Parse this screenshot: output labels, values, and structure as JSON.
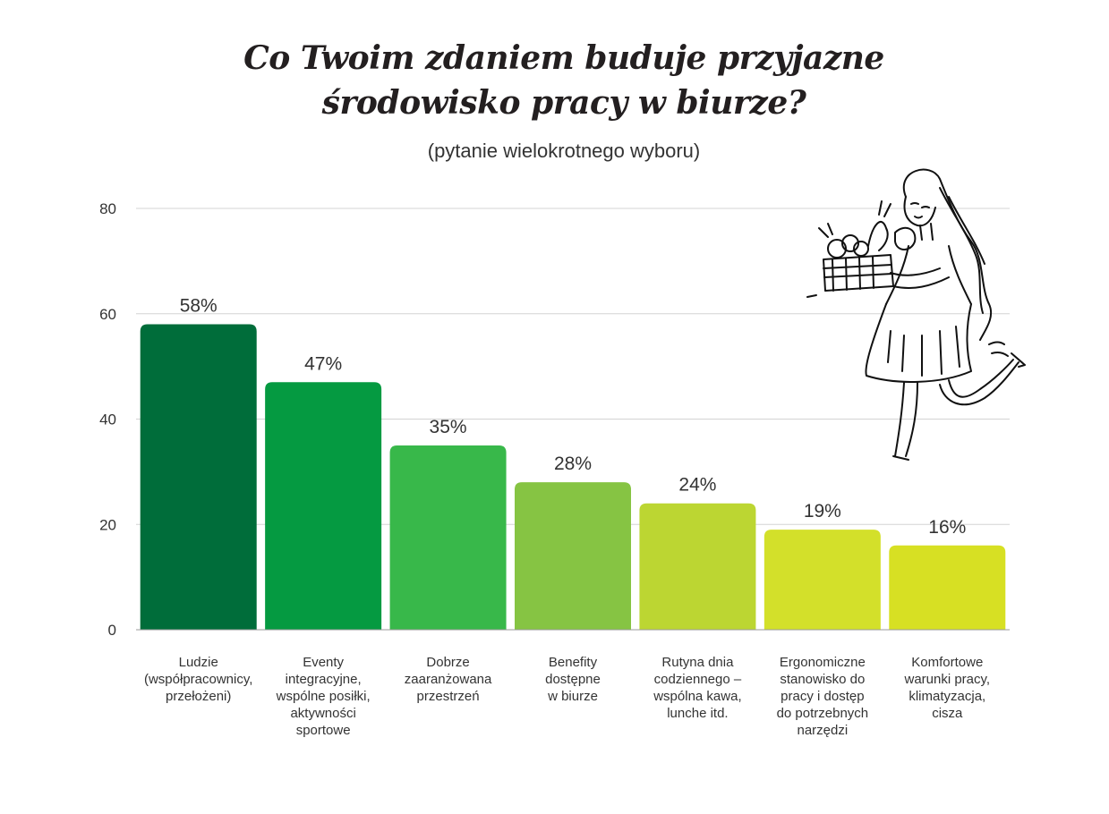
{
  "title_lines": [
    "Co Twoim zdaniem buduje przyjazne",
    "środowisko pracy w biurze?"
  ],
  "subtitle": "(pytanie wielokrotnego wyboru)",
  "chart_data": {
    "type": "bar",
    "title": "Co Twoim zdaniem buduje przyjazne środowisko pracy w biurze?",
    "subtitle": "(pytanie wielokrotnego wyboru)",
    "categories": [
      [
        "Ludzie",
        "(współpracownicy,",
        "przełożeni)"
      ],
      [
        "Eventy",
        "integracyjne,",
        "wspólne posiłki,",
        "aktywności",
        "sportowe"
      ],
      [
        "Dobrze",
        "zaaranżowana",
        "przestrzeń"
      ],
      [
        "Benefity",
        "dostępne",
        "w biurze"
      ],
      [
        "Rutyna dnia",
        "codziennego –",
        "wspólna kawa,",
        "lunche itd."
      ],
      [
        "Ergonomiczne",
        "stanowisko do",
        "pracy i dostęp",
        "do potrzebnych",
        "narzędzi"
      ],
      [
        "Komfortowe",
        "warunki pracy,",
        "klimatyzacja,",
        "cisza"
      ]
    ],
    "values": [
      58,
      47,
      35,
      28,
      24,
      19,
      16
    ],
    "value_labels": [
      "58%",
      "47%",
      "35%",
      "28%",
      "24%",
      "19%",
      "16%"
    ],
    "bar_colors": [
      "#006d3a",
      "#059a41",
      "#38b84a",
      "#86c443",
      "#bcd632",
      "#d3e02a",
      "#d7e023"
    ],
    "ylim": [
      0,
      80
    ],
    "yticks": [
      0,
      20,
      40,
      60,
      80
    ],
    "grid": true,
    "xlabel": "",
    "ylabel": ""
  },
  "illustration": "woman-with-vegetable-basket"
}
